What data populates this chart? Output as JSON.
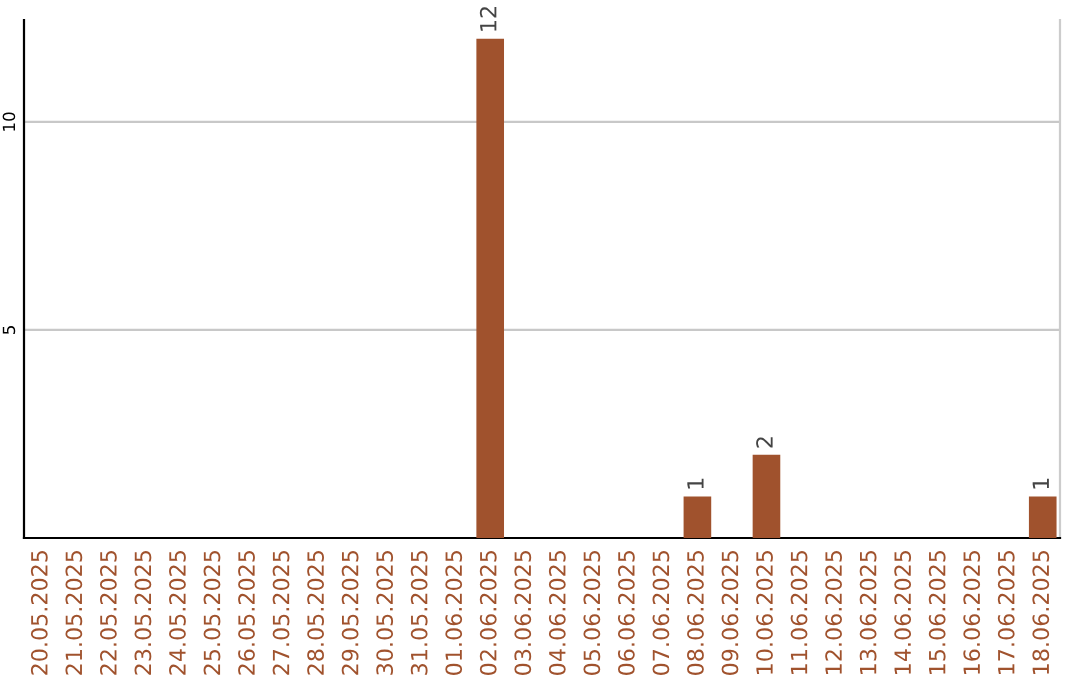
{
  "chart_data": {
    "type": "bar",
    "categories": [
      "20.05.2025",
      "21.05.2025",
      "22.05.2025",
      "23.05.2025",
      "24.05.2025",
      "25.05.2025",
      "26.05.2025",
      "27.05.2025",
      "28.05.2025",
      "29.05.2025",
      "30.05.2025",
      "31.05.2025",
      "01.06.2025",
      "02.06.2025",
      "03.06.2025",
      "04.06.2025",
      "05.06.2025",
      "06.06.2025",
      "07.06.2025",
      "08.06.2025",
      "09.06.2025",
      "10.06.2025",
      "11.06.2025",
      "12.06.2025",
      "13.06.2025",
      "14.06.2025",
      "15.06.2025",
      "16.06.2025",
      "17.06.2025",
      "18.06.2025"
    ],
    "values": [
      0,
      0,
      0,
      0,
      0,
      0,
      0,
      0,
      0,
      0,
      0,
      0,
      0,
      12,
      0,
      0,
      0,
      0,
      0,
      1,
      0,
      2,
      0,
      0,
      0,
      0,
      0,
      0,
      0,
      1
    ],
    "value_labels": [
      null,
      null,
      null,
      null,
      null,
      null,
      null,
      null,
      null,
      null,
      null,
      null,
      null,
      "12",
      null,
      null,
      null,
      null,
      null,
      "1",
      null,
      "2",
      null,
      null,
      null,
      null,
      null,
      null,
      null,
      "1"
    ],
    "color": "#a0522d",
    "ylim": [
      0,
      12.45
    ],
    "yticks": [
      5,
      10
    ],
    "grid": "y"
  }
}
